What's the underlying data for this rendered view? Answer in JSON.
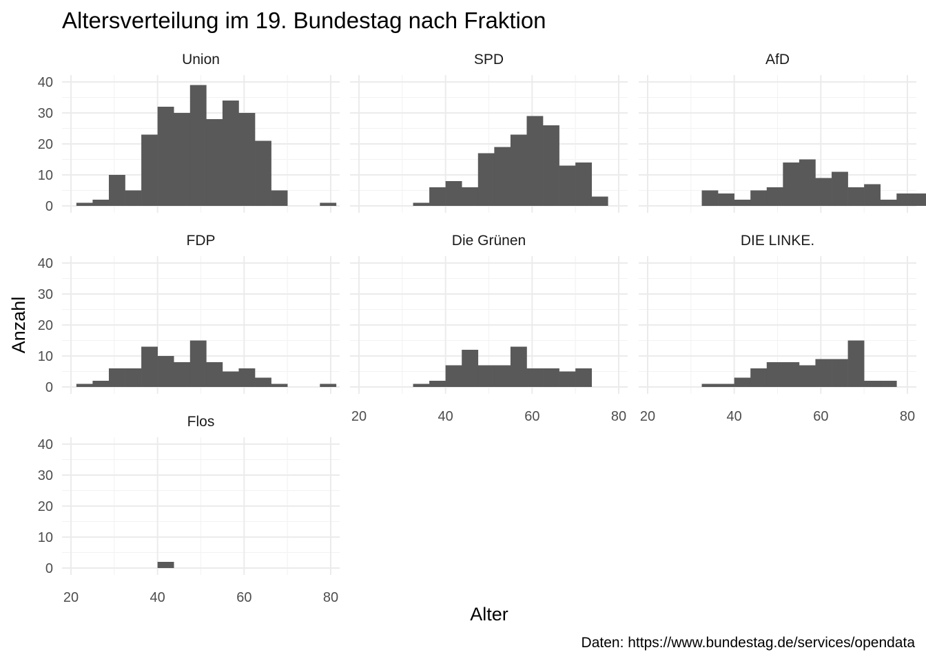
{
  "chart_data": {
    "type": "bar",
    "title": "Altersverteilung im 19. Bundestag nach Fraktion",
    "xlabel": "Alter",
    "ylabel": "Anzahl",
    "caption": "Daten: https://www.bundestag.de/services/opendata",
    "xlim": [
      20,
      80
    ],
    "ylim": [
      0,
      40
    ],
    "x_ticks": [
      20,
      40,
      60,
      80
    ],
    "y_ticks": [
      0,
      10,
      20,
      30,
      40
    ],
    "grid": true,
    "bar_color": "#595959",
    "bin_width": 3.75,
    "bin_start": 21.25,
    "panels": [
      {
        "name": "Union",
        "values": [
          1,
          2,
          10,
          5,
          23,
          32,
          30,
          39,
          28,
          34,
          30,
          21,
          5,
          0,
          0,
          1
        ]
      },
      {
        "name": "SPD",
        "values": [
          0,
          0,
          0,
          1,
          6,
          8,
          6,
          17,
          19,
          23,
          29,
          26,
          13,
          14,
          3,
          0
        ]
      },
      {
        "name": "AfD",
        "values": [
          0,
          0,
          0,
          5,
          4,
          2,
          5,
          6,
          14,
          15,
          9,
          11,
          6,
          7,
          2,
          4,
          4
        ]
      },
      {
        "name": "FDP",
        "values": [
          1,
          2,
          6,
          6,
          13,
          10,
          8,
          15,
          8,
          5,
          6,
          3,
          1,
          0,
          0,
          1
        ]
      },
      {
        "name": "Die Grünen",
        "values": [
          0,
          0,
          0,
          1,
          2,
          7,
          12,
          7,
          7,
          13,
          6,
          6,
          5,
          6
        ]
      },
      {
        "name": "DIE LINKE.",
        "values": [
          0,
          0,
          0,
          1,
          1,
          3,
          6,
          8,
          8,
          7,
          9,
          9,
          15,
          2,
          2
        ]
      },
      {
        "name": "Flos",
        "values": [
          0,
          0,
          0,
          0,
          0,
          2
        ]
      }
    ]
  }
}
